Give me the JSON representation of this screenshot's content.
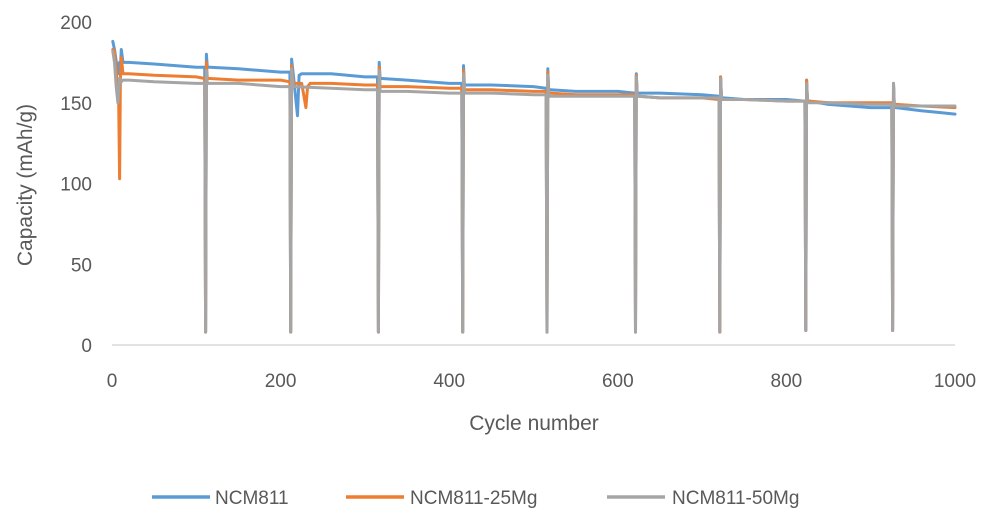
{
  "chart_data": {
    "type": "line",
    "title": "",
    "xlabel": "Cycle number",
    "ylabel": "Capacity (mAh/g)",
    "xlim": [
      0,
      1000
    ],
    "ylim": [
      0,
      200
    ],
    "xticks": [
      "0",
      "200",
      "400",
      "600",
      "800",
      "1000"
    ],
    "yticks": [
      "0",
      "50",
      "100",
      "150",
      "200"
    ],
    "grid": false,
    "legend": "bottom",
    "series": [
      {
        "name": "NCM811",
        "color": "#5B9BD5",
        "x": [
          1,
          3,
          6,
          8,
          9,
          10,
          11,
          13,
          20,
          50,
          100,
          110,
          111,
          112,
          113,
          116,
          150,
          200,
          211,
          212,
          213,
          215,
          220,
          222,
          225,
          260,
          300,
          315,
          316,
          317,
          318,
          320,
          350,
          400,
          415,
          416,
          417,
          418,
          420,
          450,
          500,
          515,
          516,
          517,
          518,
          520,
          550,
          600,
          620,
          621,
          622,
          623,
          625,
          650,
          700,
          720,
          721,
          722,
          723,
          725,
          750,
          800,
          822,
          823,
          824,
          825,
          827,
          850,
          900,
          925,
          926,
          927,
          928,
          930,
          960,
          980,
          1000
        ],
        "y": [
          188,
          183,
          172,
          168,
          175,
          172,
          183,
          175,
          175,
          174,
          172,
          172,
          8,
          180,
          172,
          172,
          171,
          169,
          169,
          8,
          177,
          168,
          142,
          167,
          168,
          168,
          166,
          166,
          8,
          175,
          165,
          165,
          164,
          162,
          162,
          8,
          173,
          161,
          161,
          161,
          160,
          159,
          8,
          171,
          158,
          158,
          157,
          157,
          156,
          8,
          168,
          156,
          156,
          156,
          155,
          154,
          8,
          166,
          153,
          153,
          152,
          152,
          151,
          9,
          164,
          151,
          151,
          149,
          147,
          147,
          9,
          162,
          147,
          147,
          145,
          144,
          143
        ]
      },
      {
        "name": "NCM811-25Mg",
        "color": "#ED7D31",
        "x": [
          1,
          3,
          5,
          8,
          9,
          10,
          11,
          13,
          20,
          50,
          100,
          110,
          111,
          112,
          113,
          116,
          150,
          200,
          211,
          212,
          213,
          215,
          225,
          230,
          232,
          235,
          260,
          300,
          315,
          316,
          317,
          318,
          320,
          350,
          400,
          415,
          416,
          417,
          418,
          420,
          450,
          500,
          515,
          516,
          517,
          518,
          520,
          550,
          600,
          620,
          621,
          622,
          623,
          625,
          650,
          700,
          720,
          721,
          722,
          723,
          725,
          750,
          800,
          822,
          823,
          824,
          825,
          827,
          850,
          900,
          925,
          926,
          927,
          928,
          930,
          960,
          1000
        ],
        "y": [
          183,
          182,
          170,
          150,
          103,
          165,
          178,
          168,
          168,
          167,
          166,
          165,
          8,
          175,
          165,
          165,
          164,
          164,
          163,
          8,
          173,
          162,
          162,
          147,
          160,
          162,
          162,
          161,
          161,
          8,
          172,
          160,
          160,
          160,
          159,
          159,
          8,
          170,
          158,
          158,
          158,
          157,
          157,
          8,
          169,
          156,
          156,
          155,
          155,
          155,
          8,
          167,
          154,
          154,
          153,
          153,
          152,
          8,
          166,
          152,
          152,
          152,
          151,
          151,
          9,
          164,
          151,
          151,
          150,
          150,
          150,
          9,
          161,
          149,
          149,
          148,
          147
        ]
      },
      {
        "name": "NCM811-50Mg",
        "color": "#A5A5A5",
        "x": [
          1,
          3,
          5,
          7,
          9,
          11,
          13,
          20,
          50,
          100,
          110,
          111,
          112,
          113,
          116,
          150,
          200,
          211,
          212,
          213,
          215,
          260,
          300,
          315,
          316,
          317,
          318,
          320,
          350,
          400,
          415,
          416,
          417,
          418,
          420,
          450,
          500,
          515,
          516,
          517,
          518,
          520,
          550,
          600,
          620,
          621,
          622,
          623,
          625,
          650,
          700,
          720,
          721,
          722,
          723,
          725,
          750,
          800,
          822,
          823,
          824,
          825,
          827,
          850,
          900,
          925,
          926,
          927,
          928,
          930,
          960,
          1000
        ],
        "y": [
          182,
          175,
          160,
          150,
          165,
          163,
          164,
          164,
          163,
          162,
          162,
          8,
          170,
          162,
          162,
          162,
          160,
          160,
          8,
          171,
          160,
          159,
          158,
          158,
          8,
          170,
          157,
          157,
          157,
          156,
          156,
          8,
          168,
          156,
          156,
          156,
          155,
          155,
          8,
          167,
          154,
          154,
          154,
          154,
          154,
          8,
          166,
          154,
          154,
          153,
          153,
          153,
          8,
          165,
          152,
          152,
          152,
          151,
          151,
          9,
          162,
          151,
          150,
          150,
          149,
          149,
          9,
          162,
          148,
          148,
          148,
          148
        ]
      }
    ]
  }
}
